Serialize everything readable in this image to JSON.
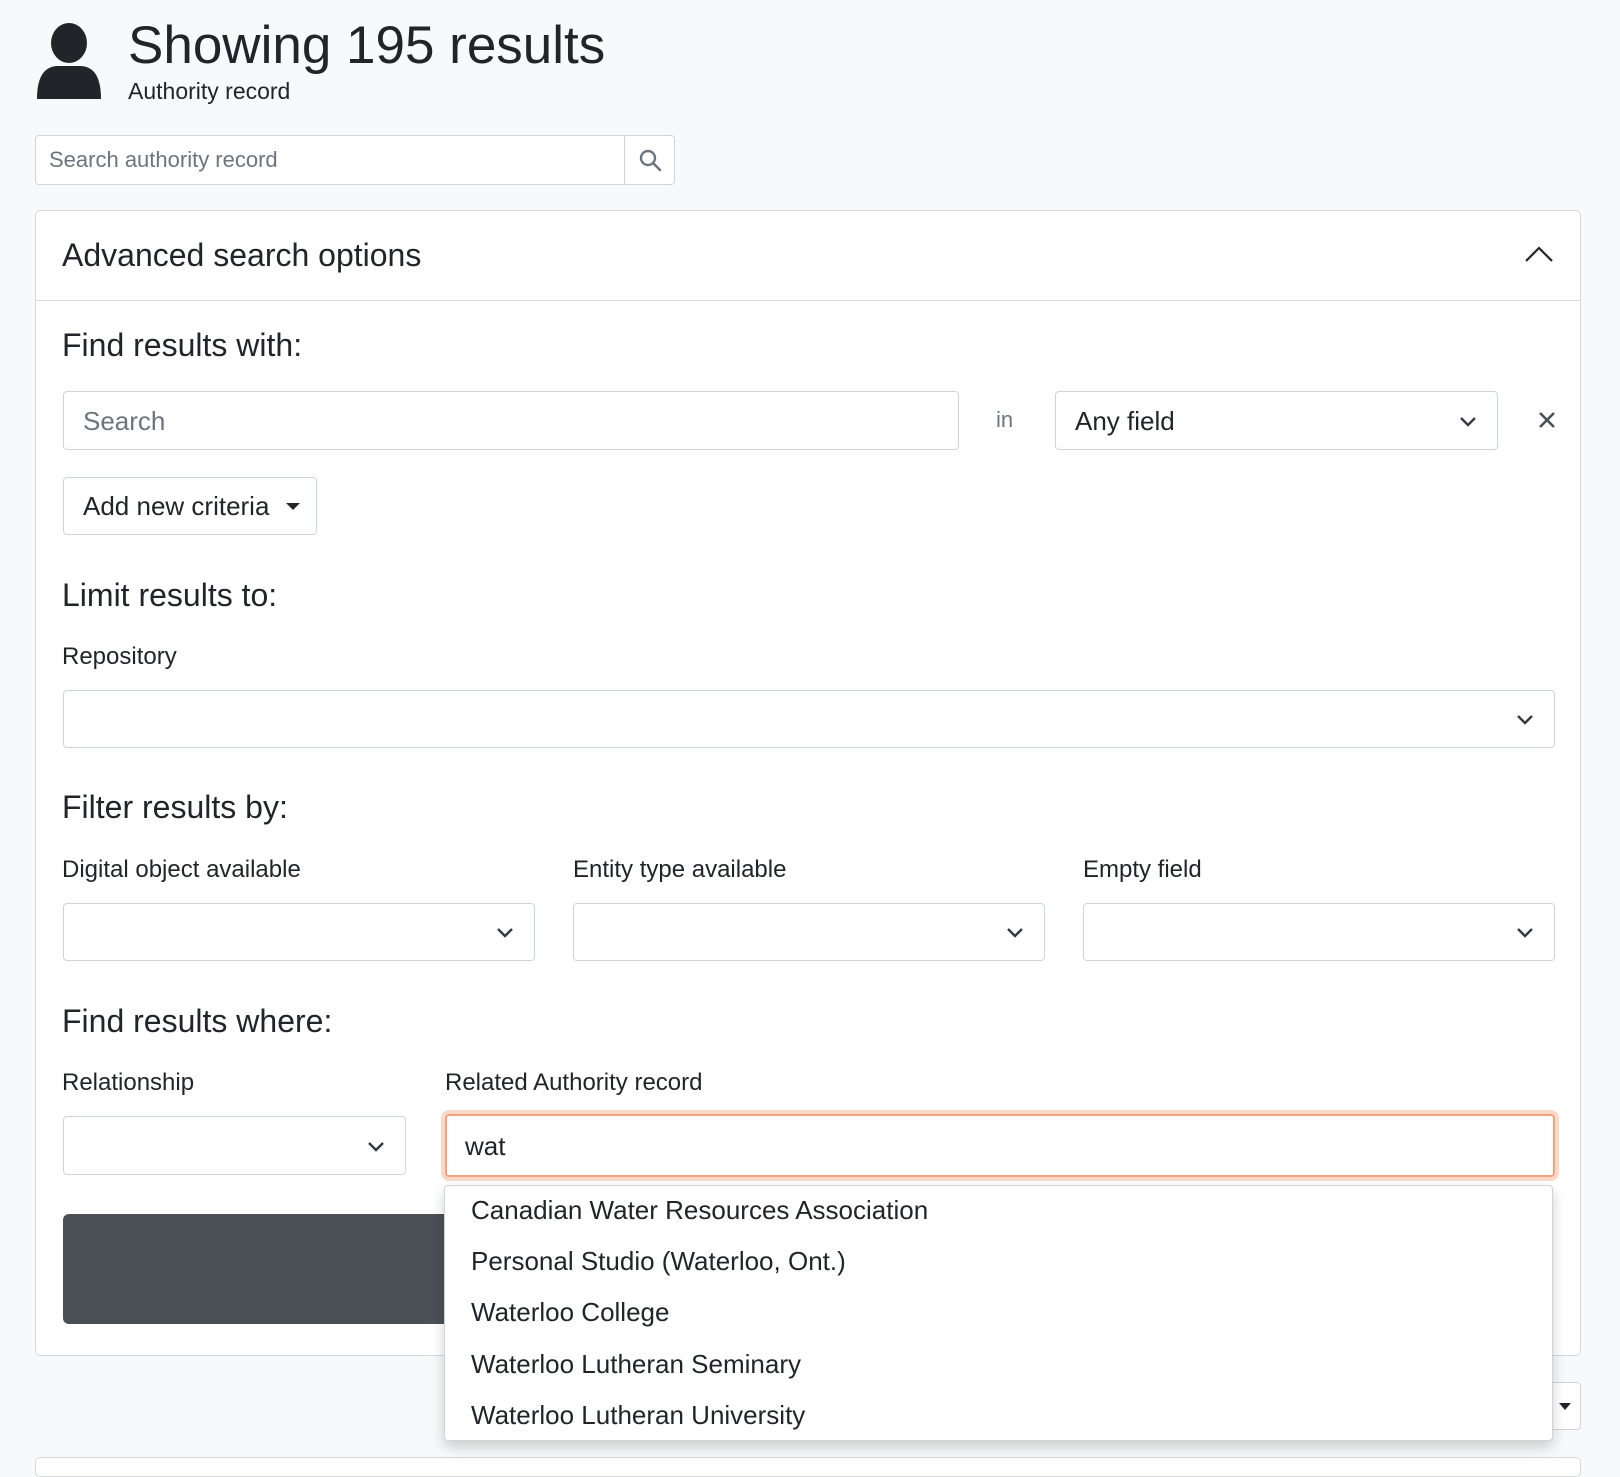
{
  "header": {
    "title": "Showing 195 results",
    "subtitle": "Authority record",
    "icon": "user-icon"
  },
  "top_search": {
    "placeholder": "Search authority record",
    "icon": "search-icon"
  },
  "advanced": {
    "title": "Advanced search options",
    "find_with": {
      "heading": "Find results with:",
      "search_placeholder": "Search",
      "in_label": "in",
      "field_value": "Any field",
      "add_criteria": "Add new criteria"
    },
    "limit": {
      "heading": "Limit results to:",
      "repository_label": "Repository",
      "repository_value": ""
    },
    "filter": {
      "heading": "Filter results by:",
      "digital_object_label": "Digital object available",
      "entity_type_label": "Entity type available",
      "empty_field_label": "Empty field"
    },
    "where": {
      "heading": "Find results where:",
      "relationship_label": "Relationship",
      "related_label": "Related Authority record",
      "related_value": "wat"
    },
    "autocomplete": [
      "Canadian Water Resources Association",
      "Personal Studio (Waterloo, Ont.)",
      "Waterloo College",
      "Waterloo Lutheran Seminary",
      "Waterloo Lutheran University"
    ]
  },
  "colors": {
    "focus": "#f4a27c",
    "button_dark": "#4b5057"
  }
}
